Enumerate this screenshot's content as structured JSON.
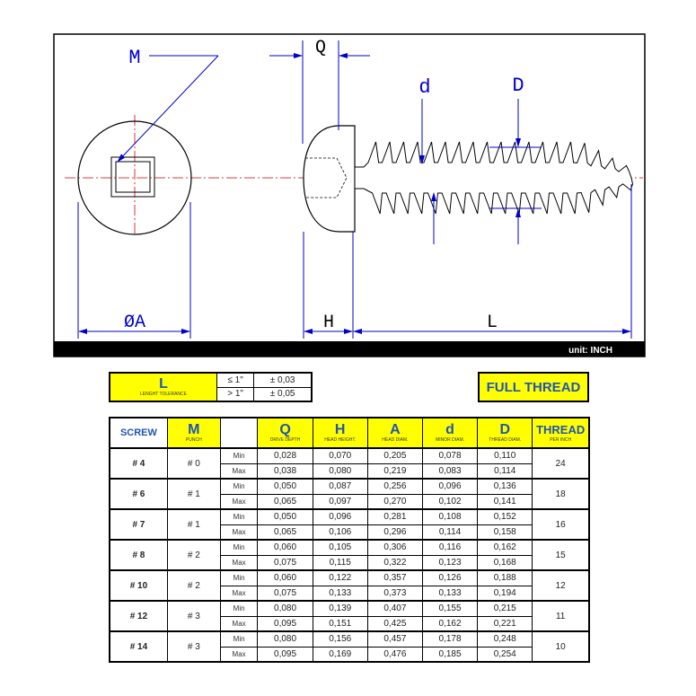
{
  "drawing": {
    "labels": {
      "M": "M",
      "Q": "Q",
      "d": "d",
      "D": "D",
      "A": "ØA",
      "H": "H",
      "L": "L"
    },
    "unit_label": "unit: INCH",
    "colors": {
      "dimension": "#0000cc",
      "centerline": "#cc0000",
      "outline": "#000000"
    }
  },
  "tolerance": {
    "title": "L",
    "subtitle": "LENGHT TOLERANCE",
    "rows": [
      {
        "cond": "≤ 1\"",
        "tol": "± 0,03"
      },
      {
        "cond": "> 1\"",
        "tol": "± 0,05"
      }
    ]
  },
  "full_thread_label": "FULL THREAD",
  "spec_table": {
    "headers": [
      {
        "main": "SCREW",
        "sub": ""
      },
      {
        "main": "M",
        "sub": "PUNCH"
      },
      {
        "main": "",
        "sub": ""
      },
      {
        "main": "Q",
        "sub": "DRIVE DEPTH"
      },
      {
        "main": "H",
        "sub": "HEAD HEIGHT."
      },
      {
        "main": "A",
        "sub": "HEAD DIAM."
      },
      {
        "main": "d",
        "sub": "MINOR DIAM."
      },
      {
        "main": "D",
        "sub": "THREAD DIAM."
      },
      {
        "main": "THREAD",
        "sub": "PER INCH"
      }
    ],
    "rows": [
      {
        "screw": "# 4",
        "punch": "# 0",
        "tpi": "24",
        "min": [
          "0,028",
          "0,070",
          "0,205",
          "0,078",
          "0,110"
        ],
        "max": [
          "0,038",
          "0,080",
          "0,219",
          "0,083",
          "0,114"
        ]
      },
      {
        "screw": "# 6",
        "punch": "# 1",
        "tpi": "18",
        "min": [
          "0,050",
          "0,087",
          "0,256",
          "0,096",
          "0,136"
        ],
        "max": [
          "0,065",
          "0,097",
          "0,270",
          "0,102",
          "0,141"
        ]
      },
      {
        "screw": "# 7",
        "punch": "# 1",
        "tpi": "16",
        "min": [
          "0,050",
          "0,096",
          "0,281",
          "0,108",
          "0,152"
        ],
        "max": [
          "0,065",
          "0,106",
          "0,296",
          "0,114",
          "0,158"
        ]
      },
      {
        "screw": "# 8",
        "punch": "# 2",
        "tpi": "15",
        "min": [
          "0,060",
          "0,105",
          "0,306",
          "0,116",
          "0,162"
        ],
        "max": [
          "0,075",
          "0,115",
          "0,322",
          "0,123",
          "0,168"
        ]
      },
      {
        "screw": "# 10",
        "punch": "# 2",
        "tpi": "12",
        "min": [
          "0,060",
          "0,122",
          "0,357",
          "0,126",
          "0,188"
        ],
        "max": [
          "0,075",
          "0,133",
          "0,373",
          "0,133",
          "0,194"
        ]
      },
      {
        "screw": "# 12",
        "punch": "# 3",
        "tpi": "11",
        "min": [
          "0,080",
          "0,139",
          "0,407",
          "0,155",
          "0,215"
        ],
        "max": [
          "0,095",
          "0,151",
          "0,425",
          "0,162",
          "0,221"
        ]
      },
      {
        "screw": "# 14",
        "punch": "# 3",
        "tpi": "10",
        "min": [
          "0,080",
          "0,156",
          "0,457",
          "0,178",
          "0,248"
        ],
        "max": [
          "0,095",
          "0,169",
          "0,476",
          "0,185",
          "0,254"
        ]
      }
    ],
    "min_label": "Min",
    "max_label": "Max"
  }
}
